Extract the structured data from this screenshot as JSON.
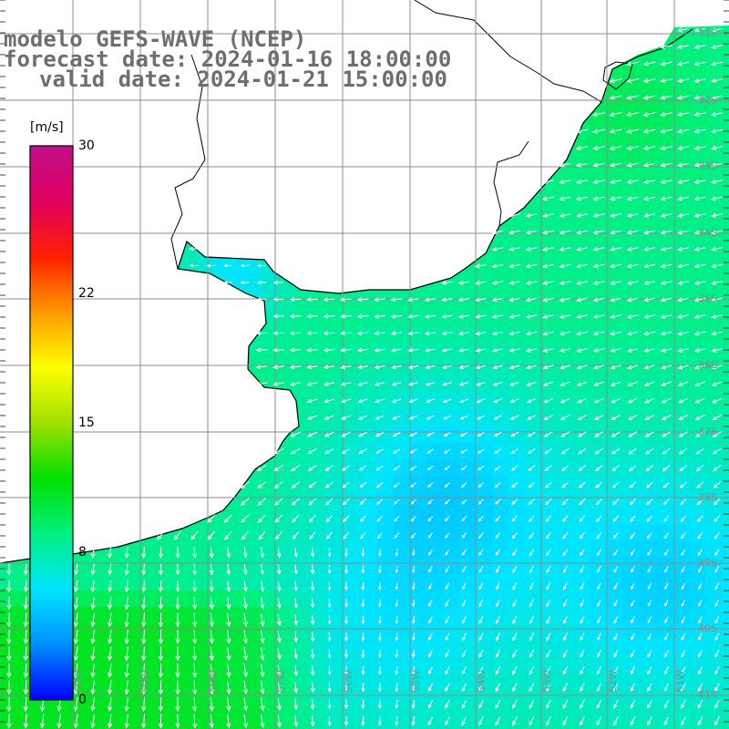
{
  "title": {
    "line1": "modelo GEFS-WAVE (NCEP)",
    "line2": "forecast date: 2024-01-16 18:00:00",
    "line3": "valid date: 2024-01-21 15:00:00"
  },
  "colorbar": {
    "unit": "[m/s]",
    "min": 0,
    "max": 30,
    "ticks": [
      "30",
      "22",
      "15",
      "8",
      "0"
    ],
    "tick_values": [
      30,
      22,
      15,
      8,
      0
    ],
    "colors": [
      "#0000ff",
      "#0090ff",
      "#00e5ff",
      "#00f080",
      "#00e000",
      "#a0e000",
      "#ffff00",
      "#ff9900",
      "#ff2000",
      "#e00060",
      "#c0108a"
    ]
  },
  "map": {
    "variable": "wind speed",
    "lon_range": [
      -61,
      -50
    ],
    "lat_range": [
      -41,
      -31
    ],
    "lat_labels": [
      "31S",
      "32S",
      "33S",
      "34S",
      "35S",
      "36S",
      "37S",
      "38S",
      "39S",
      "40S",
      "41S"
    ],
    "lon_labels": [
      "60W",
      "59W",
      "58W",
      "57W",
      "56W",
      "55W",
      "54W",
      "53W",
      "52W",
      "51W"
    ],
    "land_color": "#ffffff",
    "coast_color": "#000000",
    "grid_color": "#8c8c8c",
    "arrow_color": "#ffffff"
  }
}
